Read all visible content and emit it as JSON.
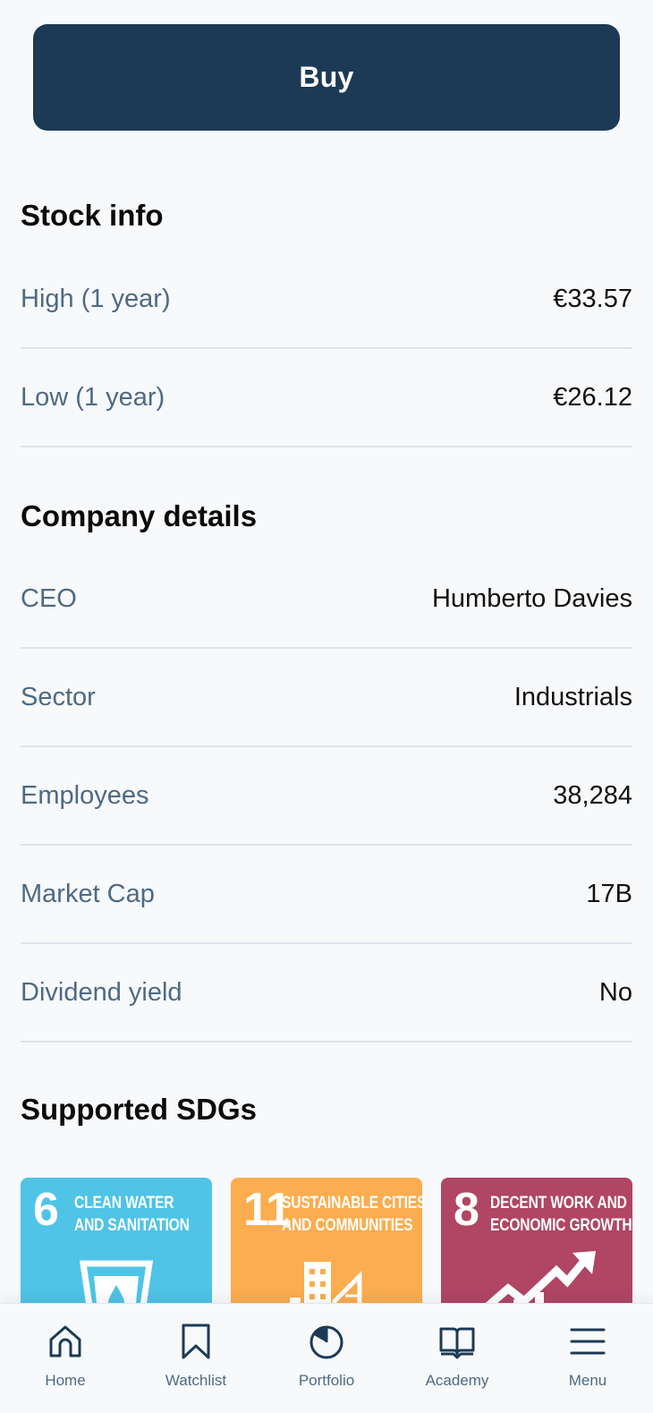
{
  "buy_button": {
    "label": "Buy"
  },
  "stock_info": {
    "title": "Stock info",
    "rows": [
      {
        "label": "High (1 year)",
        "value": "€33.57"
      },
      {
        "label": "Low (1 year)",
        "value": "€26.12"
      }
    ]
  },
  "company_details": {
    "title": "Company details",
    "rows": [
      {
        "label": "CEO",
        "value": "Humberto Davies"
      },
      {
        "label": "Sector",
        "value": "Industrials"
      },
      {
        "label": "Employees",
        "value": "38,284"
      },
      {
        "label": "Market Cap",
        "value": "17B"
      },
      {
        "label": "Dividend yield",
        "value": "No"
      }
    ]
  },
  "sdgs": {
    "title": "Supported SDGs",
    "cards": [
      {
        "number": "6",
        "line1": "CLEAN WATER",
        "line2": "AND SANITATION",
        "color": "#4fc4e6",
        "icon": "water-glass-icon"
      },
      {
        "number": "11",
        "line1": "SUSTAINABLE CITIES",
        "line2": "AND COMMUNITIES",
        "color": "#fbad4f",
        "icon": "city-buildings-icon"
      },
      {
        "number": "8",
        "line1": "DECENT WORK AND",
        "line2": "ECONOMIC GROWTH",
        "color": "#b04564",
        "icon": "growth-chart-icon"
      }
    ]
  },
  "nav": {
    "items": [
      {
        "label": "Home",
        "icon": "home-icon"
      },
      {
        "label": "Watchlist",
        "icon": "bookmark-icon"
      },
      {
        "label": "Portfolio",
        "icon": "pie-chart-icon"
      },
      {
        "label": "Academy",
        "icon": "book-icon"
      },
      {
        "label": "Menu",
        "icon": "hamburger-menu-icon"
      }
    ]
  },
  "colors": {
    "primary": "#1c3a55",
    "label_text": "#4d6a85",
    "divider": "#dfe3ea",
    "background": "#f8f9fb"
  }
}
